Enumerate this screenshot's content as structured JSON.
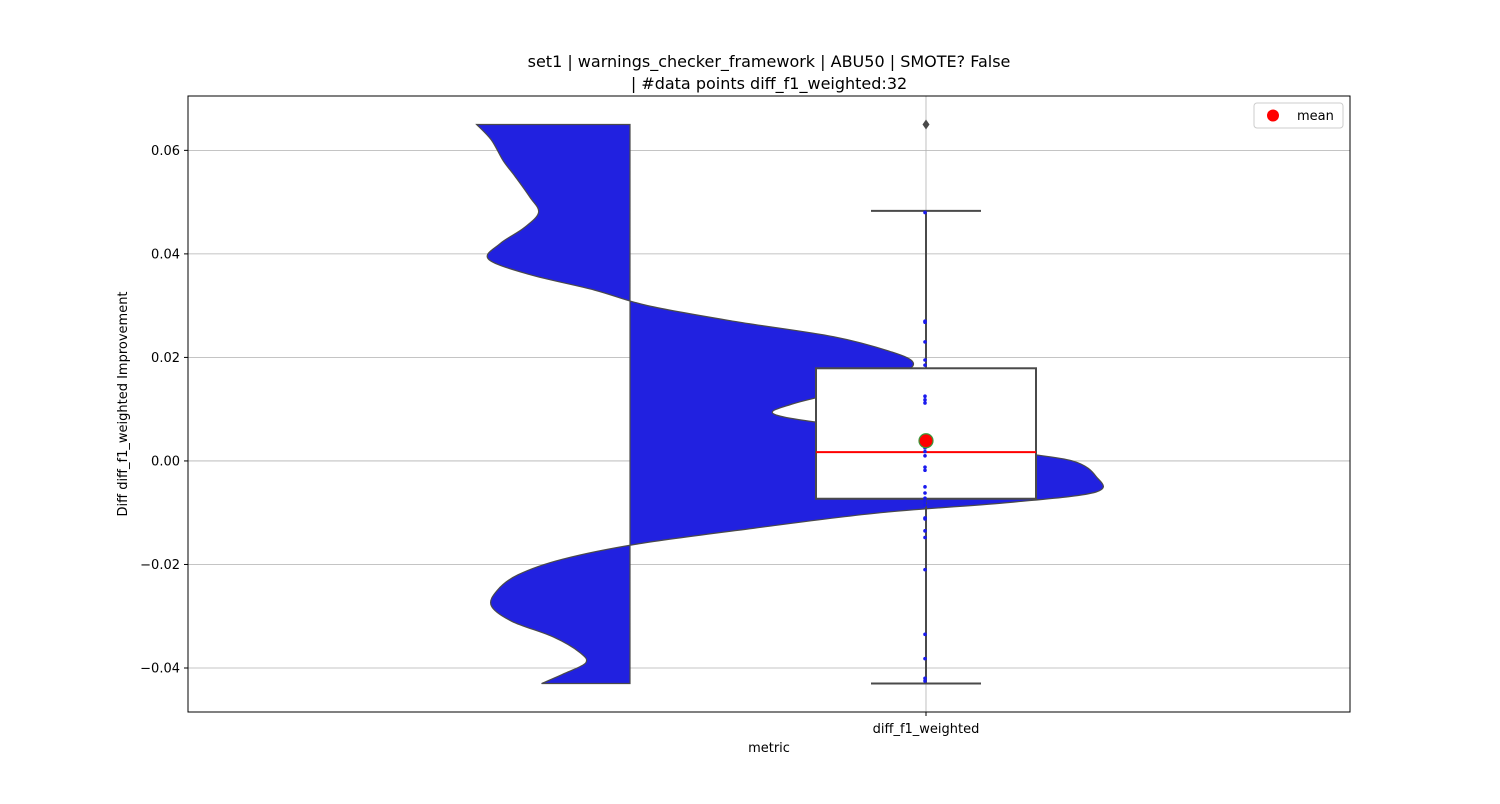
{
  "chart_data": {
    "type": "violin+box",
    "title_lines": [
      "set1 | warnings_checker_framework | ABU50 | SMOTE? False",
      "| #data points diff_f1_weighted:32"
    ],
    "xlabel": "metric",
    "ylabel": "Diff diff_f1_weighted Improvement",
    "categories": [
      "diff_f1_weighted"
    ],
    "ylim": [
      -0.0485,
      0.0705
    ],
    "y_ticks": [
      -0.04,
      -0.02,
      0.0,
      0.02,
      0.04,
      0.06
    ],
    "y_tick_labels": [
      "−0.04",
      "−0.02",
      "0.00",
      "0.02",
      "0.04",
      "0.06"
    ],
    "grid": true,
    "legend": {
      "placement": "top-right",
      "entries": [
        {
          "label": "mean",
          "color": "#ff0000"
        }
      ]
    },
    "box": {
      "whisker_low": -0.043,
      "q1": -0.0073,
      "median": 0.0017,
      "q3": 0.0179,
      "whisker_high": 0.0483,
      "mean": 0.0039,
      "outliers": [
        0.065
      ]
    },
    "violin_density": [
      [
        0.065,
        0.52
      ],
      [
        0.062,
        0.47
      ],
      [
        0.058,
        0.43
      ],
      [
        0.055,
        0.39
      ],
      [
        0.051,
        0.34
      ],
      [
        0.048,
        0.31
      ],
      [
        0.045,
        0.36
      ],
      [
        0.042,
        0.44
      ],
      [
        0.039,
        0.48
      ],
      [
        0.036,
        0.34
      ],
      [
        0.033,
        0.12
      ],
      [
        0.03,
        -0.06
      ],
      [
        0.027,
        -0.35
      ],
      [
        0.024,
        -0.69
      ],
      [
        0.021,
        -0.89
      ],
      [
        0.019,
        -0.96
      ],
      [
        0.017,
        -0.92
      ],
      [
        0.014,
        -0.76
      ],
      [
        0.011,
        -0.55
      ],
      [
        0.009,
        -0.49
      ],
      [
        0.007,
        -0.7
      ],
      [
        0.005,
        -1.05
      ],
      [
        0.002,
        -1.28
      ],
      [
        0.0,
        -1.5
      ],
      [
        -0.003,
        -1.58
      ],
      [
        -0.006,
        -1.58
      ],
      [
        -0.008,
        -1.29
      ],
      [
        -0.01,
        -0.85
      ],
      [
        -0.013,
        -0.42
      ],
      [
        -0.016,
        -0.03
      ],
      [
        -0.019,
        0.23
      ],
      [
        -0.022,
        0.38
      ],
      [
        -0.025,
        0.45
      ],
      [
        -0.028,
        0.47
      ],
      [
        -0.031,
        0.4
      ],
      [
        -0.034,
        0.26
      ],
      [
        -0.037,
        0.17
      ],
      [
        -0.039,
        0.15
      ],
      [
        -0.041,
        0.22
      ],
      [
        -0.043,
        0.3
      ]
    ],
    "strip_points": [
      0.048,
      0.027,
      0.0268,
      0.023,
      0.0195,
      0.0185,
      0.0125,
      0.0118,
      0.0112,
      0.0045,
      0.0042,
      0.004,
      0.0035,
      0.0025,
      0.0018,
      0.001,
      -0.0012,
      -0.0018,
      -0.005,
      -0.0062,
      -0.0072,
      -0.0078,
      -0.0085,
      -0.011,
      -0.0112,
      -0.0135,
      -0.0148,
      -0.021,
      -0.0335,
      -0.0382,
      -0.042,
      -0.0425
    ],
    "colors": {
      "violin_fill": "#2121e0",
      "violin_edge": "#4a4a4a",
      "box_edge": "#4a4a4a",
      "median_line": "#ff0000",
      "mean_marker": "#ff0000",
      "mean_marker_edge": "#3a9a3a",
      "strip_points": "#1a1aee",
      "grid": "#b0b0b0",
      "outlier": "#4a4a4a"
    }
  }
}
